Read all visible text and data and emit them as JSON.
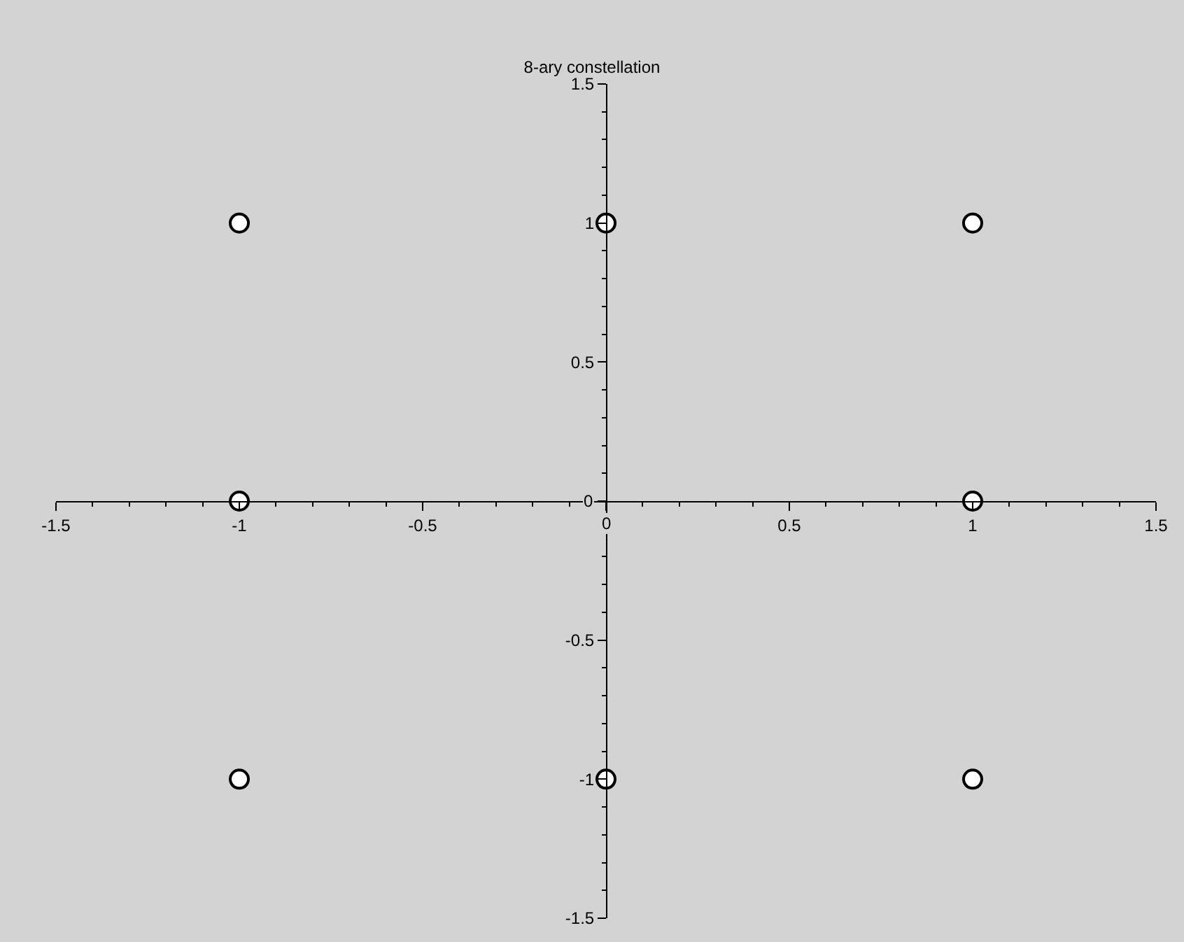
{
  "chart_data": {
    "type": "scatter",
    "title": "8-ary constellation",
    "x": [
      -1,
      0,
      1,
      -1,
      1,
      -1,
      0,
      1
    ],
    "series": [
      {
        "color": "#ffffff",
        "values": [
          1,
          1,
          1,
          0,
          0,
          -1,
          -1,
          -1
        ]
      }
    ],
    "xlim": [
      -1.5,
      1.5
    ],
    "ylim": [
      -1.5,
      1.5
    ],
    "xticks": [
      -1.5,
      -1,
      -0.5,
      0,
      0.5,
      1,
      1.5
    ],
    "yticks": [
      -1.5,
      -1,
      -0.5,
      0,
      0.5,
      1,
      1.5
    ],
    "marker": "circle"
  }
}
